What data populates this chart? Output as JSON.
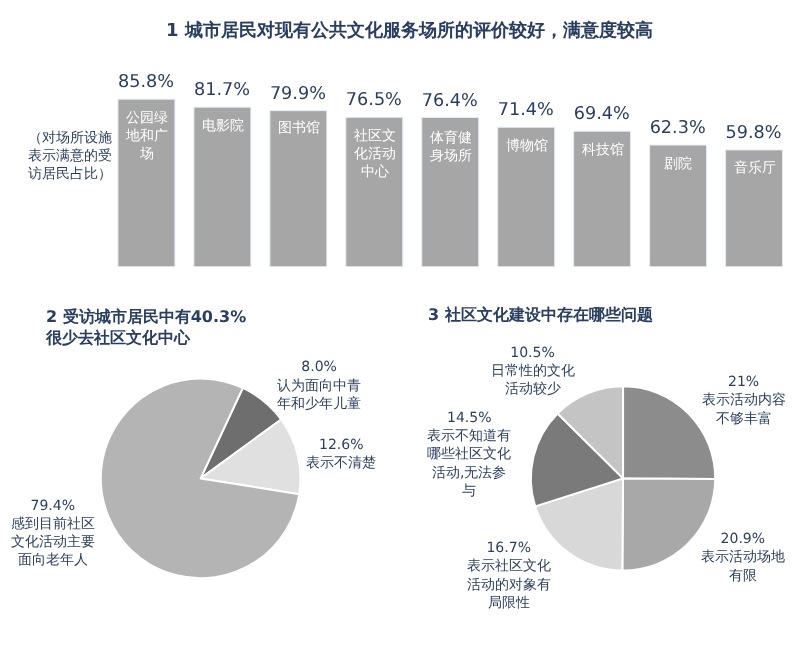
{
  "chart_data": [
    {
      "type": "bar",
      "title": "1 城市居民对现有公共文化服务场所的评价较好，满意度较高",
      "annotations": [
        "（对场所设施表示满意的受访居民占比）"
      ],
      "categories": [
        "公园绿地和广场",
        "电影院",
        "图书馆",
        "社区文化活动中心",
        "体育健身场所",
        "博物馆",
        "科技馆",
        "剧院",
        "音乐厅"
      ],
      "values": [
        85.8,
        81.7,
        79.9,
        76.5,
        76.4,
        71.4,
        69.4,
        62.3,
        59.8
      ],
      "value_labels": [
        "85.8%",
        "81.7%",
        "79.9%",
        "76.5%",
        "76.4%",
        "71.4%",
        "69.4%",
        "62.3%",
        "59.8%"
      ],
      "color": "#a6a6a6",
      "tick_labels": false
    },
    {
      "type": "pie",
      "title": "2 受访城市居民中有40.3%很少去社区文化中心",
      "categories": [
        "认为面向中青年和少年儿童",
        "表示不清楚",
        "感到目前社区文化活动主要面向老年人"
      ],
      "values": [
        8.0,
        12.6,
        79.4
      ],
      "value_labels": [
        "8.0%",
        "12.6%",
        "79.4%"
      ],
      "colors": [
        "#6e6e6e",
        "#e0e0e0",
        "#b4b4b4"
      ]
    },
    {
      "type": "pie",
      "title": "3 社区文化建设中存在哪些问题",
      "categories": [
        "表示活动内容不够丰富",
        "表示活动场地有限",
        "表示社区文化活动的对象有局限性",
        "表示不知道有哪些社区文化活动,无法参与",
        "日常性的文化活动较少"
      ],
      "values": [
        21,
        20.9,
        16.7,
        14.5,
        10.5
      ],
      "value_labels": [
        "21%",
        "20.9%",
        "16.7%",
        "14.5%",
        "10.5%"
      ],
      "colors": [
        "#8c8c8c",
        "#a8a8a8",
        "#d8d8d8",
        "#7a7a7a",
        "#c4c4c4"
      ]
    }
  ]
}
